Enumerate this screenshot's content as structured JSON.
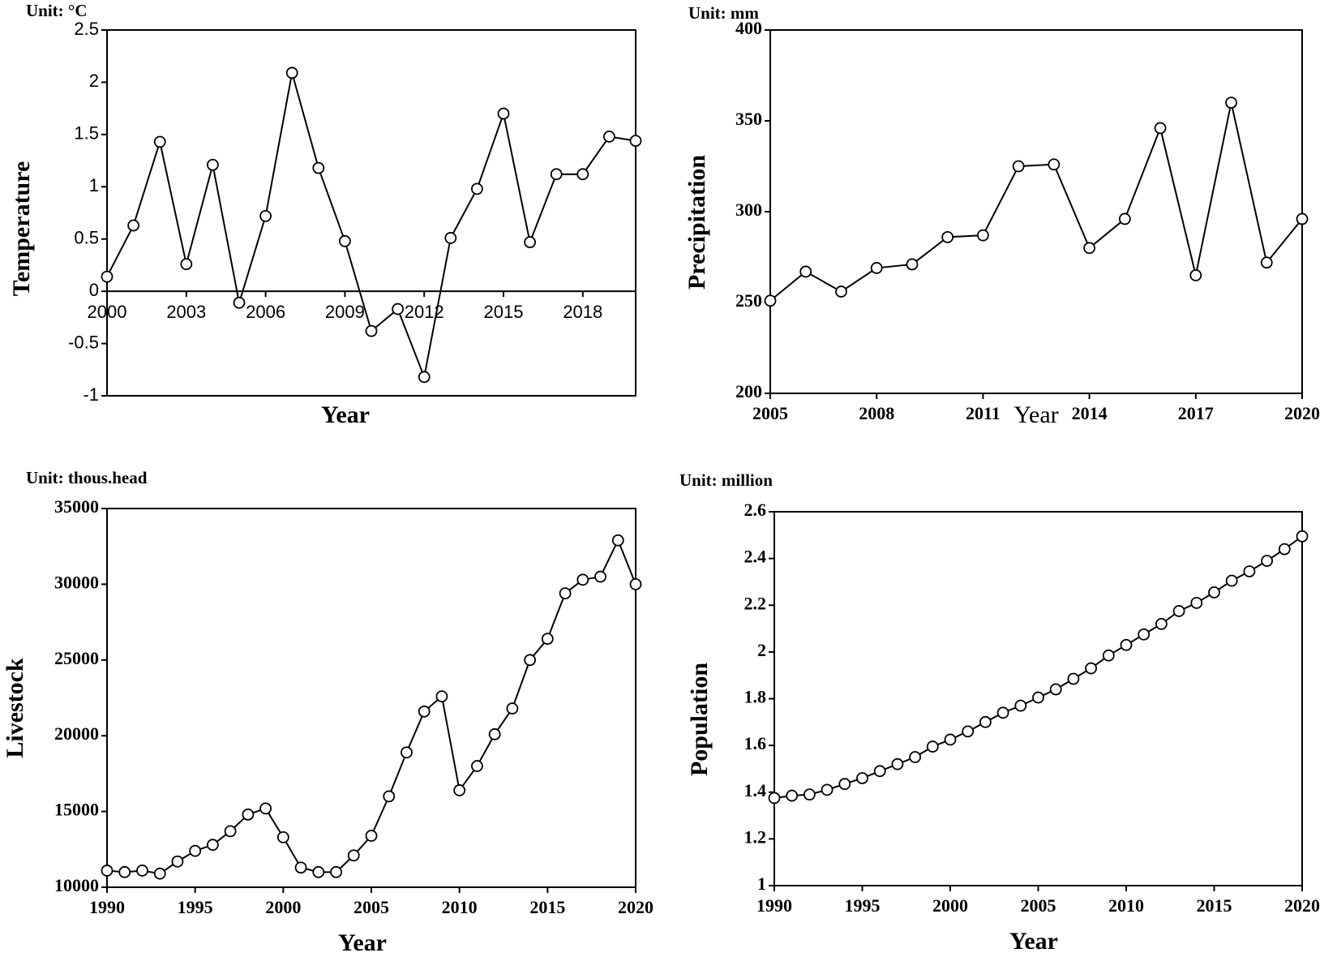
{
  "chart_data": [
    {
      "type": "line",
      "unit": "Unit: °C",
      "x_label": "Year",
      "y_label": "Temperature",
      "color": "#000000",
      "x": [
        2000,
        2001,
        2002,
        2003,
        2004,
        2005,
        2006,
        2007,
        2008,
        2009,
        2010,
        2011,
        2012,
        2013,
        2014,
        2015,
        2016,
        2017,
        2018,
        2019,
        2020
      ],
      "values": [
        0.14,
        0.63,
        1.43,
        0.26,
        1.21,
        -0.11,
        0.72,
        2.09,
        1.18,
        0.48,
        -0.38,
        -0.17,
        -0.82,
        0.51,
        0.98,
        1.7,
        0.47,
        1.12,
        1.12,
        1.48,
        1.44
      ],
      "xlim": [
        2000,
        2020
      ],
      "xticks": [
        2000,
        2003,
        2006,
        2009,
        2012,
        2015,
        2018
      ],
      "ylim": [
        -1,
        2.5
      ],
      "yticks": [
        -1,
        -0.5,
        0,
        0.5,
        1,
        1.5,
        2,
        2.5
      ]
    },
    {
      "type": "line",
      "unit": "Unit: mm",
      "x_label": "Year",
      "y_label": "Precipitation",
      "color": "#000000",
      "x": [
        2005,
        2006,
        2007,
        2008,
        2009,
        2010,
        2011,
        2012,
        2013,
        2014,
        2015,
        2016,
        2017,
        2018,
        2019,
        2020
      ],
      "values": [
        251,
        267,
        256,
        269,
        271,
        286,
        287,
        325,
        326,
        280,
        296,
        346,
        265,
        360,
        272,
        296
      ],
      "xlim": [
        2005,
        2020
      ],
      "xticks": [
        2005,
        2008,
        2011,
        2014,
        2017,
        2020
      ],
      "ylim": [
        200,
        400
      ],
      "yticks": [
        200,
        250,
        300,
        350,
        400
      ]
    },
    {
      "type": "line",
      "unit": "Unit: thous.head",
      "x_label": "Year",
      "y_label": "Livestock",
      "color": "#000000",
      "x": [
        1990,
        1991,
        1992,
        1993,
        1994,
        1995,
        1996,
        1997,
        1998,
        1999,
        2000,
        2001,
        2002,
        2003,
        2004,
        2005,
        2006,
        2007,
        2008,
        2009,
        2010,
        2011,
        2012,
        2013,
        2014,
        2015,
        2016,
        2017,
        2018,
        2019,
        2020
      ],
      "values": [
        11100,
        11000,
        11100,
        10900,
        11700,
        12400,
        12800,
        13700,
        14800,
        15200,
        13300,
        11300,
        11000,
        11000,
        12100,
        13400,
        16000,
        18900,
        21600,
        22600,
        16400,
        18000,
        20100,
        21800,
        25000,
        26400,
        29400,
        30300,
        30500,
        32900,
        30000
      ],
      "xlim": [
        1990,
        2020
      ],
      "xticks": [
        1990,
        1995,
        2000,
        2005,
        2010,
        2015,
        2020
      ],
      "ylim": [
        10000,
        35000
      ],
      "yticks": [
        10000,
        15000,
        20000,
        25000,
        30000,
        35000
      ]
    },
    {
      "type": "line",
      "unit": "Unit: million",
      "x_label": "Year",
      "y_label": "Population",
      "color": "#000000",
      "x": [
        1990,
        1991,
        1992,
        1993,
        1994,
        1995,
        1996,
        1997,
        1998,
        1999,
        2000,
        2001,
        2002,
        2003,
        2004,
        2005,
        2006,
        2007,
        2008,
        2009,
        2010,
        2011,
        2012,
        2013,
        2014,
        2015,
        2016,
        2017,
        2018,
        2019,
        2020
      ],
      "values": [
        1.375,
        1.385,
        1.39,
        1.41,
        1.435,
        1.46,
        1.49,
        1.52,
        1.55,
        1.595,
        1.625,
        1.66,
        1.7,
        1.74,
        1.77,
        1.805,
        1.84,
        1.885,
        1.93,
        1.985,
        2.03,
        2.075,
        2.12,
        2.175,
        2.21,
        2.255,
        2.305,
        2.345,
        2.39,
        2.44,
        2.495
      ],
      "xlim": [
        1990,
        2020
      ],
      "xticks": [
        1990,
        1995,
        2000,
        2005,
        2010,
        2015,
        2020
      ],
      "ylim": [
        1,
        2.6
      ],
      "yticks": [
        1,
        1.2,
        1.4,
        1.6,
        1.8,
        2,
        2.2,
        2.4,
        2.6
      ]
    }
  ]
}
